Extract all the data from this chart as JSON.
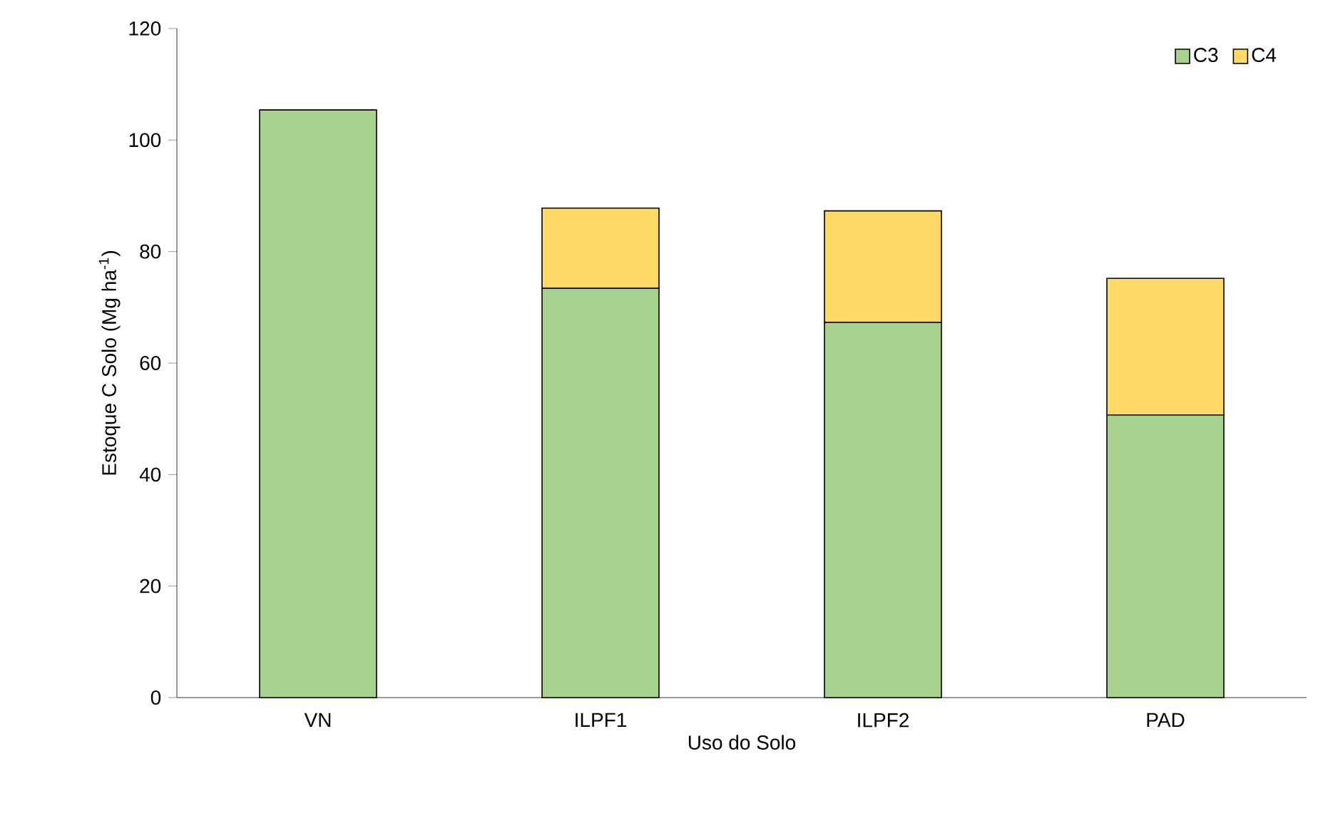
{
  "chart_data": {
    "type": "bar",
    "stacked": true,
    "xlabel": "Uso do Solo",
    "ylabel": "Estoque C Solo (Mg ha$^{-1}$)",
    "categories": [
      "VN",
      "ILPF1",
      "ILPF2",
      "PAD"
    ],
    "series": [
      {
        "name": "C3",
        "color": "#a9d18e",
        "values": [
          105.4,
          73.4,
          67.3,
          50.7
        ]
      },
      {
        "name": "C4",
        "color": "#ffd966",
        "values": [
          0,
          14.4,
          20.0,
          24.5
        ]
      }
    ],
    "ylim": [
      0,
      120
    ],
    "yticks": [
      0,
      20,
      40,
      60,
      80,
      100,
      120
    ],
    "grid": false,
    "legend": "top right"
  }
}
